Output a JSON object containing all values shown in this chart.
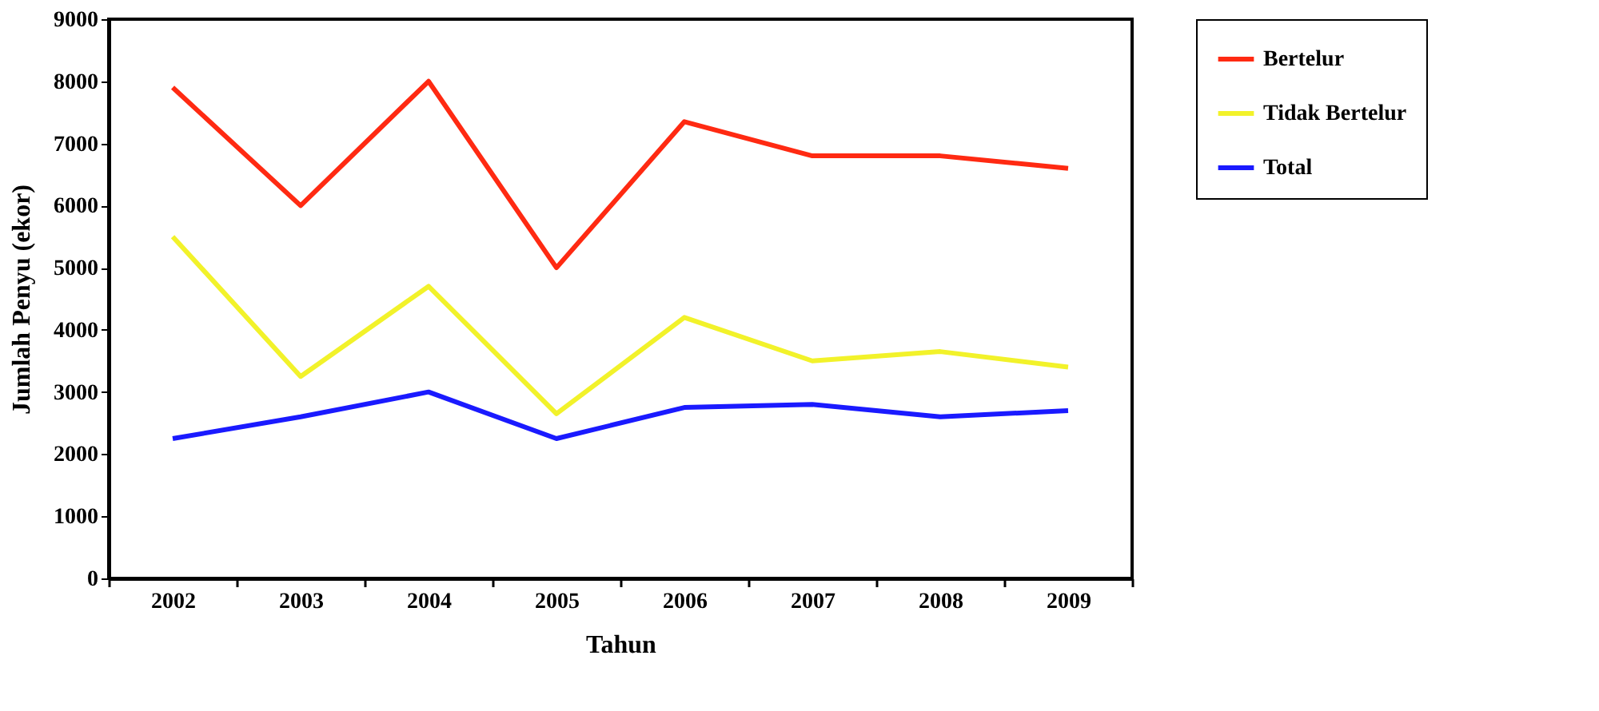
{
  "chart_data": {
    "type": "line",
    "xlabel": "Tahun",
    "ylabel": "Jumlah Penyu (ekor)",
    "categories": [
      "2002",
      "2003",
      "2004",
      "2005",
      "2006",
      "2007",
      "2008",
      "2009"
    ],
    "series": [
      {
        "name": "Bertelur",
        "color": "#ff2a12",
        "values": [
          7900,
          6000,
          8000,
          5000,
          7350,
          6800,
          6800,
          6600
        ]
      },
      {
        "name": "Tidak Bertelur",
        "color": "#f2f22a",
        "values": [
          5500,
          3250,
          4700,
          2650,
          4200,
          3500,
          3650,
          3400
        ]
      },
      {
        "name": "Total",
        "color": "#1a1aff",
        "values": [
          2250,
          2600,
          3000,
          2250,
          2750,
          2800,
          2600,
          2700
        ]
      }
    ],
    "ylim": [
      0,
      9000
    ],
    "yticks": [
      0,
      1000,
      2000,
      3000,
      4000,
      5000,
      6000,
      7000,
      8000,
      9000
    ],
    "grid": false,
    "legend": "right",
    "marker": "none",
    "line_style": "solid"
  }
}
